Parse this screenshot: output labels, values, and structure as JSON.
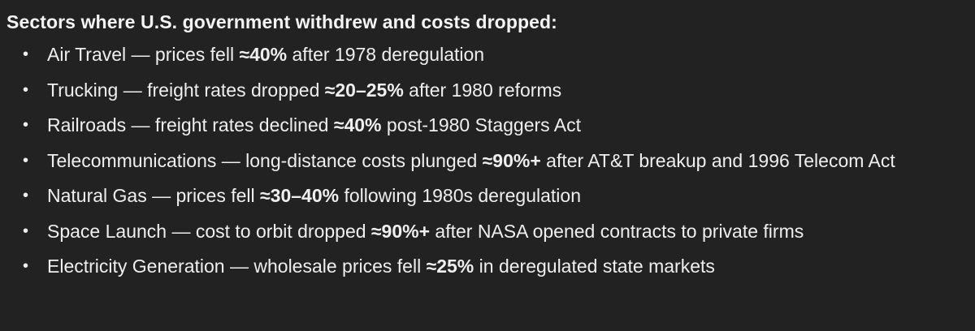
{
  "heading": "Sectors where U.S. government withdrew and costs dropped:",
  "items": [
    {
      "before": "Air Travel — prices fell ",
      "bold": "≈40%",
      "after": " after 1978 deregulation"
    },
    {
      "before": "Trucking — freight rates dropped ",
      "bold": "≈20–25%",
      "after": " after 1980 reforms"
    },
    {
      "before": "Railroads — freight rates declined ",
      "bold": "≈40%",
      "after": " post-1980 Staggers Act"
    },
    {
      "before": "Telecommunications — long-distance costs plunged ",
      "bold": "≈90%+",
      "after": " after AT&T breakup and 1996 Telecom Act"
    },
    {
      "before": "Natural Gas — prices fell ",
      "bold": "≈30–40%",
      "after": " following 1980s deregulation"
    },
    {
      "before": "Space Launch — cost to orbit dropped ",
      "bold": "≈90%+",
      "after": " after NASA opened contracts to private firms"
    },
    {
      "before": "Electricity Generation — wholesale prices fell ",
      "bold": "≈25%",
      "after": " in deregulated state markets"
    }
  ],
  "bullet_glyph": "•",
  "colors": {
    "background": "#222222",
    "text": "#efefef"
  }
}
